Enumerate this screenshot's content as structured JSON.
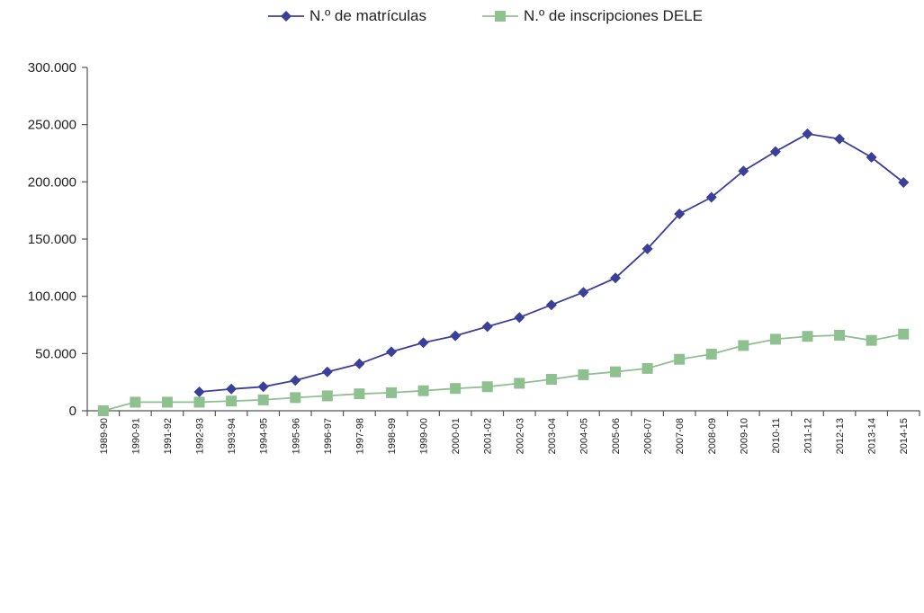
{
  "chart_data": {
    "type": "line",
    "title": "",
    "xlabel": "",
    "ylabel": "",
    "categories": [
      "1989-90",
      "1990-91",
      "1991-92",
      "1992-93",
      "1993-94",
      "1994-95",
      "1995-96",
      "1996-97",
      "1997-98",
      "1998-99",
      "1999-00",
      "2000-01",
      "2001-02",
      "2002-03",
      "2003-04",
      "2004-05",
      "2005-06",
      "2006-07",
      "2007-08",
      "2008-09",
      "2009-10",
      "2010-11",
      "2011-12",
      "2012-13",
      "2013-14",
      "2014-15"
    ],
    "ylim": [
      0,
      300000
    ],
    "yticks": [
      0,
      50000,
      100000,
      150000,
      200000,
      250000,
      300000
    ],
    "ytick_labels": [
      "0",
      "50.000",
      "100.000",
      "150.000",
      "200.000",
      "250.000",
      "300.000"
    ],
    "grid": false,
    "legend_position": "top-center",
    "series": [
      {
        "name": "N.º de matrículas",
        "color": "#3b3f99",
        "marker": "diamond",
        "values": [
          null,
          null,
          null,
          16500,
          19000,
          21000,
          26500,
          34000,
          41000,
          51500,
          59500,
          65500,
          73500,
          81500,
          92500,
          103500,
          116000,
          141500,
          172000,
          186500,
          209500,
          226500,
          242000,
          237500,
          221500,
          199500
        ]
      },
      {
        "name": "N.º de inscripciones DELE",
        "color": "#8fc08f",
        "marker": "square",
        "values": [
          0,
          7500,
          7500,
          7500,
          8500,
          9500,
          11500,
          13000,
          14800,
          15800,
          17500,
          19500,
          21000,
          24000,
          27500,
          31500,
          34000,
          37000,
          45000,
          49500,
          57000,
          62500,
          65000,
          66000,
          61500,
          67000
        ]
      }
    ]
  }
}
